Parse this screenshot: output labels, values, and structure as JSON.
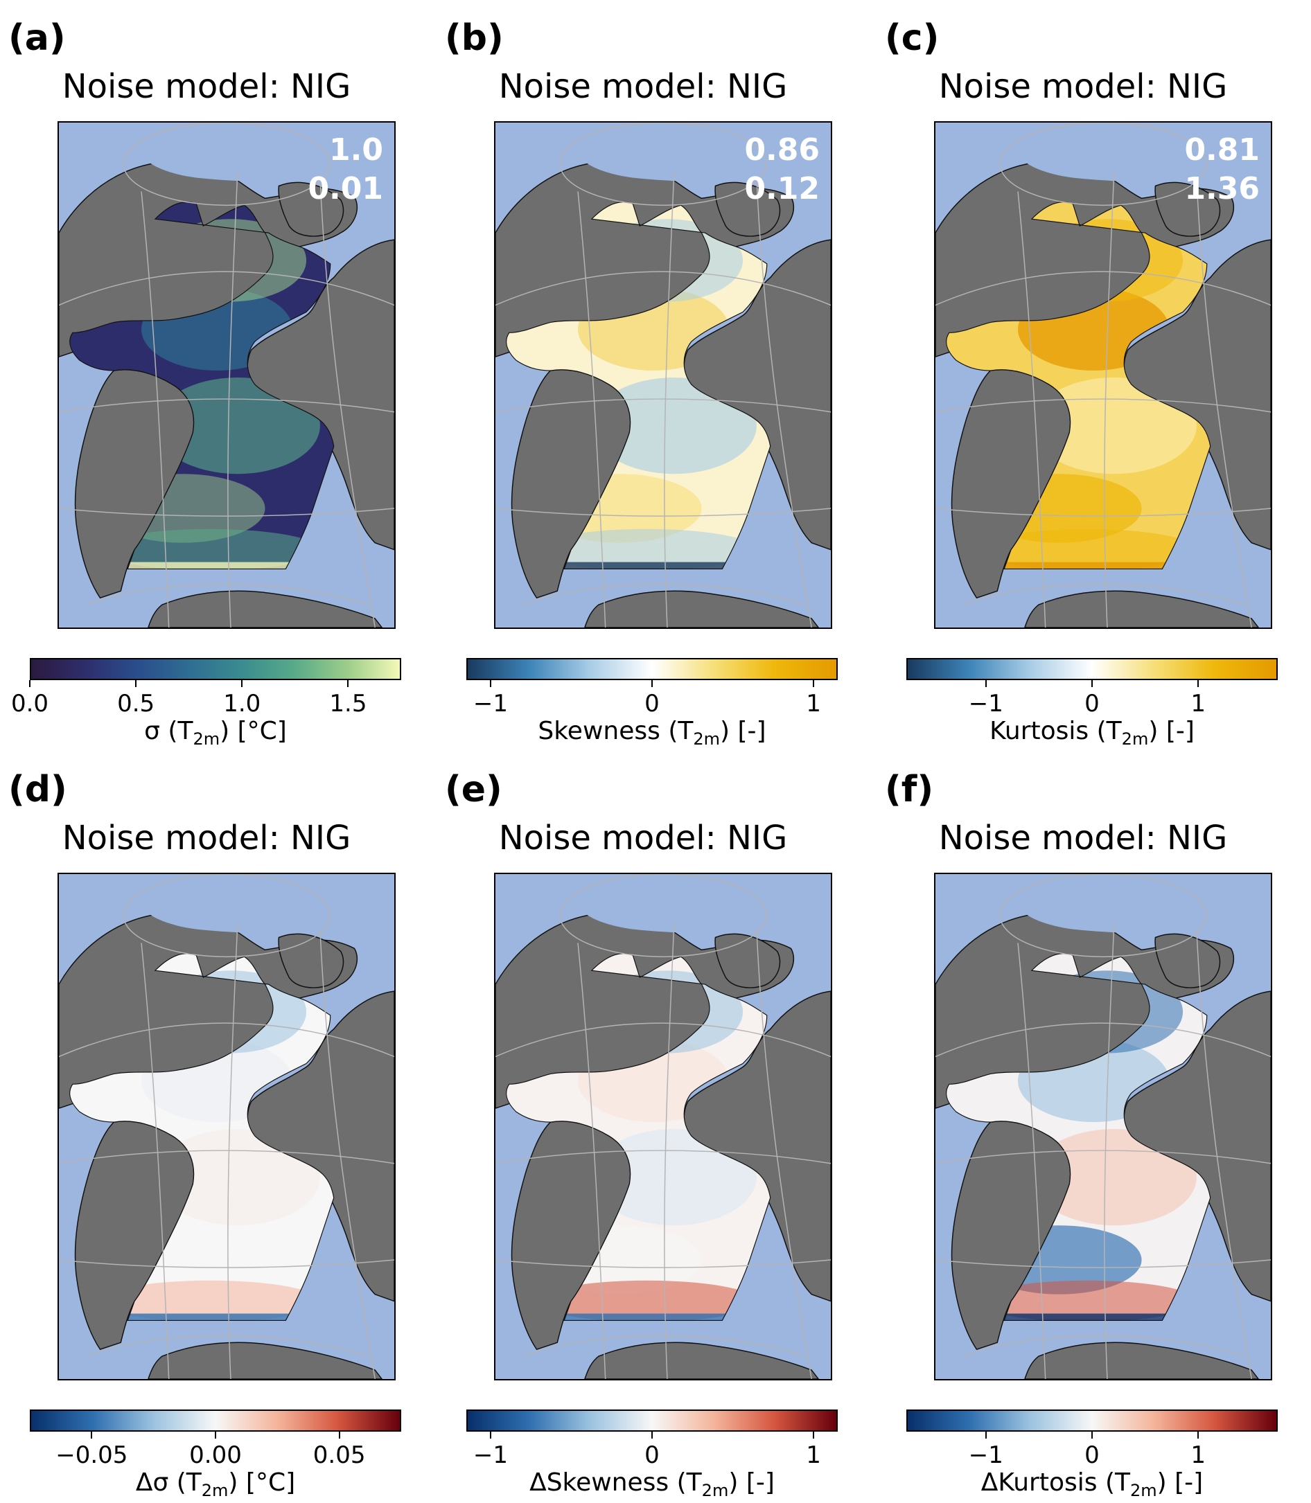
{
  "panels": [
    {
      "label": "(a)",
      "title": "Noise model: NIG",
      "stat1": "1.0",
      "stat2": "0.01",
      "cb_prefix": "σ (T",
      "cb_sub": "2m",
      "cb_suffix": ") [°C]",
      "ticks": [
        "0.0",
        "0.5",
        "1.0",
        "1.5"
      ],
      "tick_values": [
        0,
        0.5,
        1.0,
        1.5
      ],
      "range": [
        0,
        1.75
      ],
      "colormap": "haline",
      "ocean_style": "sigma"
    },
    {
      "label": "(b)",
      "title": "Noise model: NIG",
      "stat1": "0.86",
      "stat2": "0.12",
      "cb_prefix": "Skewness (T",
      "cb_sub": "2m",
      "cb_suffix": ") [-]",
      "ticks": [
        "−1",
        "0",
        "1"
      ],
      "tick_values": [
        -1,
        0,
        1
      ],
      "range": [
        -1.15,
        1.15
      ],
      "colormap": "blue-white-gold",
      "ocean_style": "skew"
    },
    {
      "label": "(c)",
      "title": "Noise model: NIG",
      "stat1": "0.81",
      "stat2": "1.36",
      "cb_prefix": "Kurtosis (T",
      "cb_sub": "2m",
      "cb_suffix": ") [-]",
      "ticks": [
        "−1",
        "0",
        "1"
      ],
      "tick_values": [
        -1,
        0,
        1
      ],
      "range": [
        -1.75,
        1.75
      ],
      "colormap": "blue-white-gold",
      "ocean_style": "kurt"
    },
    {
      "label": "(d)",
      "title": "Noise model: NIG",
      "stat1": "",
      "stat2": "",
      "cb_prefix": "Δσ (T",
      "cb_sub": "2m",
      "cb_suffix": ") [°C]",
      "ticks": [
        "−0.05",
        "0.00",
        "0.05"
      ],
      "tick_values": [
        -0.05,
        0,
        0.05
      ],
      "range": [
        -0.075,
        0.075
      ],
      "colormap": "RdBu_r",
      "ocean_style": "dsigma"
    },
    {
      "label": "(e)",
      "title": "Noise model: NIG",
      "stat1": "",
      "stat2": "",
      "cb_prefix": "ΔSkewness (T",
      "cb_sub": "2m",
      "cb_suffix": ") [-]",
      "ticks": [
        "−1",
        "0",
        "1"
      ],
      "tick_values": [
        -1,
        0,
        1
      ],
      "range": [
        -1.15,
        1.15
      ],
      "colormap": "RdBu_r",
      "ocean_style": "dskew"
    },
    {
      "label": "(f)",
      "title": "Noise model: NIG",
      "stat1": "",
      "stat2": "",
      "cb_prefix": "ΔKurtosis (T",
      "cb_sub": "2m",
      "cb_suffix": ") [-]",
      "ticks": [
        "−1",
        "0",
        "1"
      ],
      "tick_values": [
        -1,
        0,
        1
      ],
      "range": [
        -1.75,
        1.75
      ],
      "colormap": "RdBu_r",
      "ocean_style": "dkurt"
    }
  ],
  "colors": {
    "land": "#6e6e6e",
    "background_sea": "#9db6e0",
    "grid": "#b4b4b4",
    "haline": [
      "#2a1a3e",
      "#2e2d6b",
      "#2a4d8c",
      "#2f6d92",
      "#3a8c90",
      "#58aa89",
      "#9ccd8a",
      "#f4f8b8"
    ],
    "blue_white_gold": [
      "#1a3a5f",
      "#3d84b8",
      "#a9cde6",
      "#ffffff",
      "#f6df7a",
      "#eeb80c",
      "#e59a00"
    ],
    "rdbu_r": [
      "#08306b",
      "#2f6fb0",
      "#9cc3e0",
      "#f7f7f7",
      "#f4b59c",
      "#d5563f",
      "#67000d"
    ]
  }
}
